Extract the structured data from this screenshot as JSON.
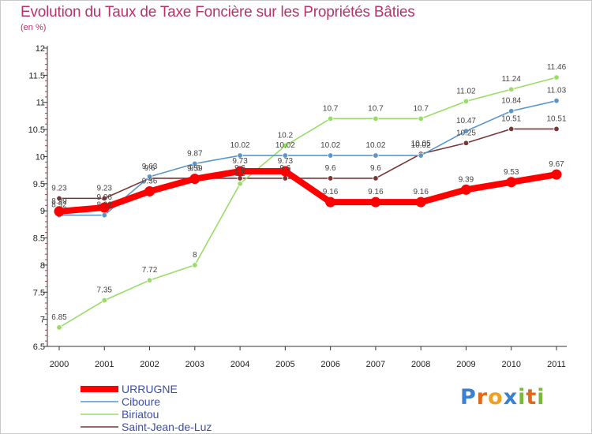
{
  "header": {
    "title": "Evolution du Taux de Taxe Foncière sur les Propriétés Bâties",
    "subtitle": "(en %)"
  },
  "logo": {
    "text": "Proxiti",
    "letters": [
      "P",
      "r",
      "o",
      "x",
      "i",
      "t",
      "i"
    ],
    "colors": [
      "#3a7fd0",
      "#e06a1a",
      "#f0a020",
      "#3a7fd0",
      "#7ab83a",
      "#e06a1a",
      "#7ab83a"
    ]
  },
  "chart_data": {
    "type": "line",
    "title": "Evolution du Taux de Taxe Foncière sur les Propriétés Bâties",
    "ylabel": "(en %)",
    "xlabel": "",
    "x": [
      "2000",
      "2001",
      "2002",
      "2003",
      "2004",
      "2005",
      "2006",
      "2007",
      "2008",
      "2009",
      "2010",
      "2011"
    ],
    "ylim": [
      6.5,
      12
    ],
    "yticks": [
      "6.5",
      "7",
      "7.5",
      "8",
      "8.5",
      "9",
      "9.5",
      "10",
      "10.5",
      "11",
      "11.5",
      "12"
    ],
    "grid": false,
    "legend_position": "bottom-left",
    "series": [
      {
        "name": "URRUGNE",
        "color": "#ff0000",
        "values": [
          8.99,
          9.06,
          9.36,
          9.59,
          9.73,
          9.73,
          9.16,
          9.16,
          9.16,
          9.39,
          9.53,
          9.67
        ],
        "labels": [
          "8.99",
          "9.06",
          "9.36",
          "9.59",
          "9.73",
          "9.73",
          "9.16",
          "9.16",
          "9.16",
          "9.39",
          "9.53",
          "9.67"
        ]
      },
      {
        "name": "Ciboure",
        "color": "#5a96c8",
        "values": [
          8.92,
          8.92,
          9.63,
          9.87,
          10.02,
          10.02,
          10.02,
          10.02,
          10.02,
          10.47,
          10.84,
          11.03
        ],
        "labels": [
          "8.92",
          "8.92",
          "9.63",
          "9.87",
          "10.02",
          "10.02",
          "10.02",
          "10.02",
          "10.02",
          "10.47",
          "10.84",
          "11.03"
        ]
      },
      {
        "name": "Biriatou",
        "color": "#99dd66",
        "values": [
          6.85,
          7.35,
          7.72,
          8,
          9.5,
          10.2,
          10.7,
          10.7,
          10.7,
          11.02,
          11.24,
          11.46
        ],
        "labels": [
          "6.85",
          "7.35",
          "7.72",
          "8",
          "9.5",
          "10.2",
          "10.7",
          "10.7",
          "10.7",
          "11.02",
          "11.24",
          "11.46"
        ]
      },
      {
        "name": "Saint-Jean-de-Luz",
        "color": "#7a3535",
        "values": [
          9.23,
          9.23,
          9.6,
          9.6,
          9.6,
          9.6,
          9.6,
          9.6,
          10.05,
          10.25,
          10.51,
          10.51
        ],
        "labels": [
          "9.23",
          "9.23",
          "9.6",
          "9.6",
          "9.6",
          "9.6",
          "9.6",
          "9.6",
          "10.05",
          "10.25",
          "10.51",
          "10.51"
        ]
      }
    ]
  }
}
